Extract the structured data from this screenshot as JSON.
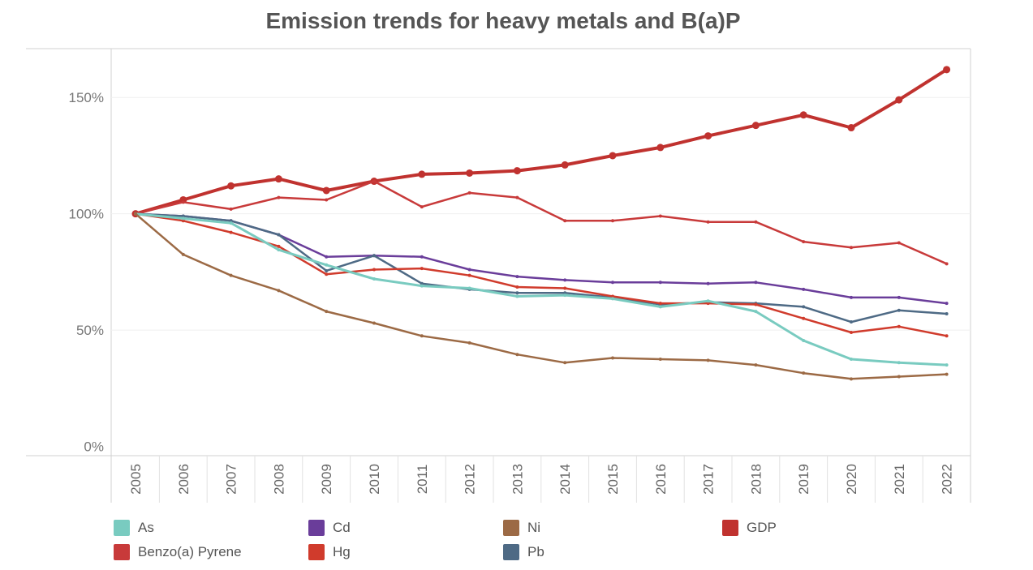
{
  "chart_data": {
    "type": "line",
    "title": "Emission trends for heavy metals and B(a)P",
    "xlabel": "",
    "ylabel": "",
    "categories": [
      "2005",
      "2006",
      "2007",
      "2008",
      "2009",
      "2010",
      "2011",
      "2012",
      "2013",
      "2014",
      "2015",
      "2016",
      "2017",
      "2018",
      "2019",
      "2020",
      "2021",
      "2022"
    ],
    "y_ticks": [
      {
        "value": 0,
        "label": "0%"
      },
      {
        "value": 50,
        "label": "50%"
      },
      {
        "value": 100,
        "label": "100%"
      },
      {
        "value": 150,
        "label": "150%"
      }
    ],
    "ylim": [
      -4,
      171
    ],
    "grid": true,
    "legend_position": "bottom",
    "series": [
      {
        "name": "GDP",
        "color": "#c0322f",
        "width": 4,
        "values": [
          100,
          106,
          112,
          115,
          110,
          114,
          117,
          117.5,
          118.5,
          121,
          125,
          128.5,
          133.5,
          138,
          142.5,
          137,
          149,
          162
        ]
      },
      {
        "name": "Benzo(a) Pyrene",
        "color": "#c83a3a",
        "width": 2.5,
        "values": [
          100,
          105,
          102,
          107,
          106,
          114,
          103,
          109,
          107,
          97,
          97,
          99,
          96.5,
          96.5,
          88,
          85.5,
          87.5,
          78.5
        ]
      },
      {
        "name": "Cd",
        "color": "#6a3d9a",
        "width": 2.5,
        "values": [
          100,
          99,
          97,
          91,
          81.5,
          82,
          81.5,
          76,
          73,
          71.5,
          70.5,
          70.5,
          70,
          70.5,
          67.5,
          64,
          64,
          61.5
        ]
      },
      {
        "name": "Pb",
        "color": "#4e6a85",
        "width": 2.5,
        "values": [
          100,
          99,
          97,
          91,
          75.5,
          82,
          70,
          67.5,
          66,
          66,
          64,
          61,
          62,
          61.5,
          60,
          53.5,
          58.5,
          57
        ]
      },
      {
        "name": "Hg",
        "color": "#d03b2c",
        "width": 2.5,
        "values": [
          100,
          97,
          92,
          86,
          74,
          76,
          76.5,
          73.5,
          68.5,
          68,
          64.5,
          61.5,
          61.5,
          61,
          55,
          49,
          51.5,
          47.5
        ]
      },
      {
        "name": "As",
        "color": "#79cbc0",
        "width": 3,
        "values": [
          100,
          98,
          96,
          84.5,
          78,
          72,
          69,
          68,
          64.5,
          65,
          63.5,
          60,
          62.5,
          58,
          45.5,
          37.5,
          36,
          35
        ]
      },
      {
        "name": "Ni",
        "color": "#9c6a45",
        "width": 2.5,
        "values": [
          100,
          82.5,
          73.5,
          67,
          58,
          53,
          47.5,
          44.5,
          39.5,
          36,
          38,
          37.5,
          37,
          35,
          31.5,
          29,
          30,
          31
        ]
      }
    ]
  },
  "legend": [
    {
      "label": "As",
      "color": "#79cbc0"
    },
    {
      "label": "Cd",
      "color": "#6a3d9a"
    },
    {
      "label": "Ni",
      "color": "#9c6a45"
    },
    {
      "label": "GDP",
      "color": "#c0322f"
    },
    {
      "label": "Benzo(a) Pyrene",
      "color": "#c83a3a"
    },
    {
      "label": "Hg",
      "color": "#d03b2c"
    },
    {
      "label": "Pb",
      "color": "#4e6a85"
    }
  ]
}
